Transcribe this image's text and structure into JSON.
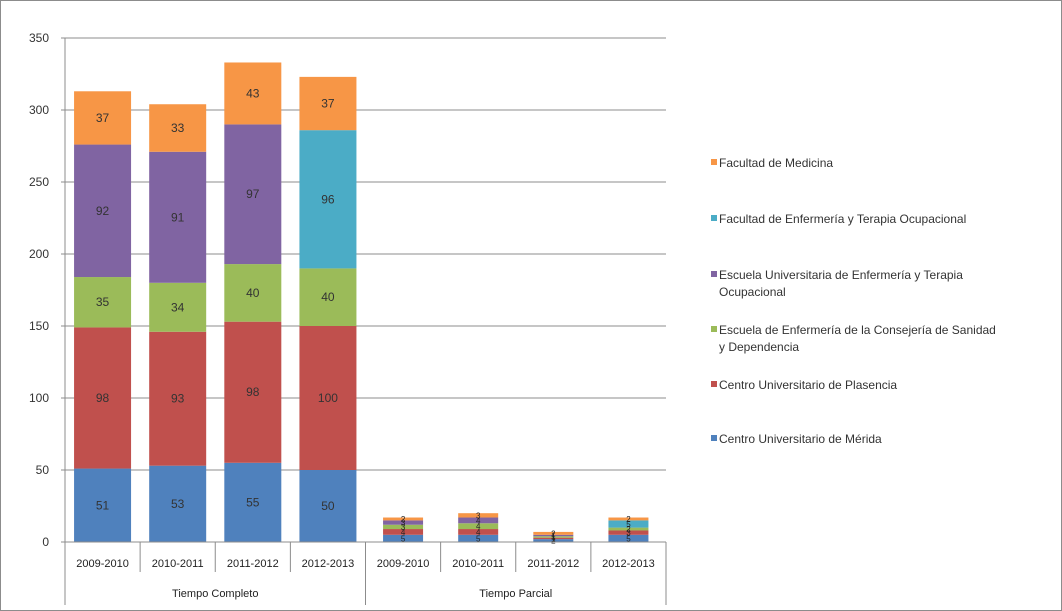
{
  "chart_data": {
    "type": "bar",
    "stacked": true,
    "ylim": [
      0,
      350
    ],
    "yticks": [
      0,
      50,
      100,
      150,
      200,
      250,
      300,
      350
    ],
    "grid": true,
    "legend_position": "right",
    "groups": [
      {
        "label": "Tiempo Completo",
        "categories": [
          "2009-2010",
          "2010-2011",
          "2011-2012",
          "2012-2013"
        ]
      },
      {
        "label": "Tiempo Parcial",
        "categories": [
          "2009-2010",
          "2010-2011",
          "2011-2012",
          "2012-2013"
        ]
      }
    ],
    "series": [
      {
        "name": "Centro Universitario de Mérida",
        "color": "#4f81bd",
        "values": [
          51,
          53,
          55,
          50,
          5,
          5,
          2,
          5
        ]
      },
      {
        "name": "Centro Universitario de Plasencia",
        "color": "#c0504d",
        "values": [
          98,
          93,
          98,
          100,
          4,
          4,
          1,
          3
        ]
      },
      {
        "name": "Escuela de Enfermería de la Consejería de Sanidad y Dependencia",
        "color": "#9bbb59",
        "values": [
          35,
          34,
          40,
          40,
          3,
          4,
          1,
          2
        ]
      },
      {
        "name": "Escuela Universitaria de Enfermería y Terapia Ocupacional",
        "color": "#8064a2",
        "values": [
          92,
          91,
          97,
          0,
          3,
          4,
          1,
          0
        ]
      },
      {
        "name": "Facultad de Enfermería y Terapia Ocupacional",
        "color": "#4bacc6",
        "values": [
          0,
          0,
          0,
          96,
          0,
          0,
          0,
          5
        ]
      },
      {
        "name": "Facultad de Medicina",
        "color": "#f79646",
        "values": [
          37,
          33,
          43,
          37,
          2,
          3,
          2,
          2
        ]
      }
    ],
    "legend_order": [
      5,
      4,
      3,
      2,
      1,
      0
    ],
    "legend_labels": [
      [
        "Facultad de Medicina"
      ],
      [
        "Facultad de Enfermería y Terapia Ocupacional"
      ],
      [
        "Escuela Universitaria de Enfermería y Terapia",
        "Ocupacional"
      ],
      [
        "Escuela de Enfermería de la Consejería de Sanidad",
        "y Dependencia"
      ],
      [
        "Centro Universitario de Plasencia"
      ],
      [
        "Centro Universitario de Mérida"
      ]
    ]
  }
}
